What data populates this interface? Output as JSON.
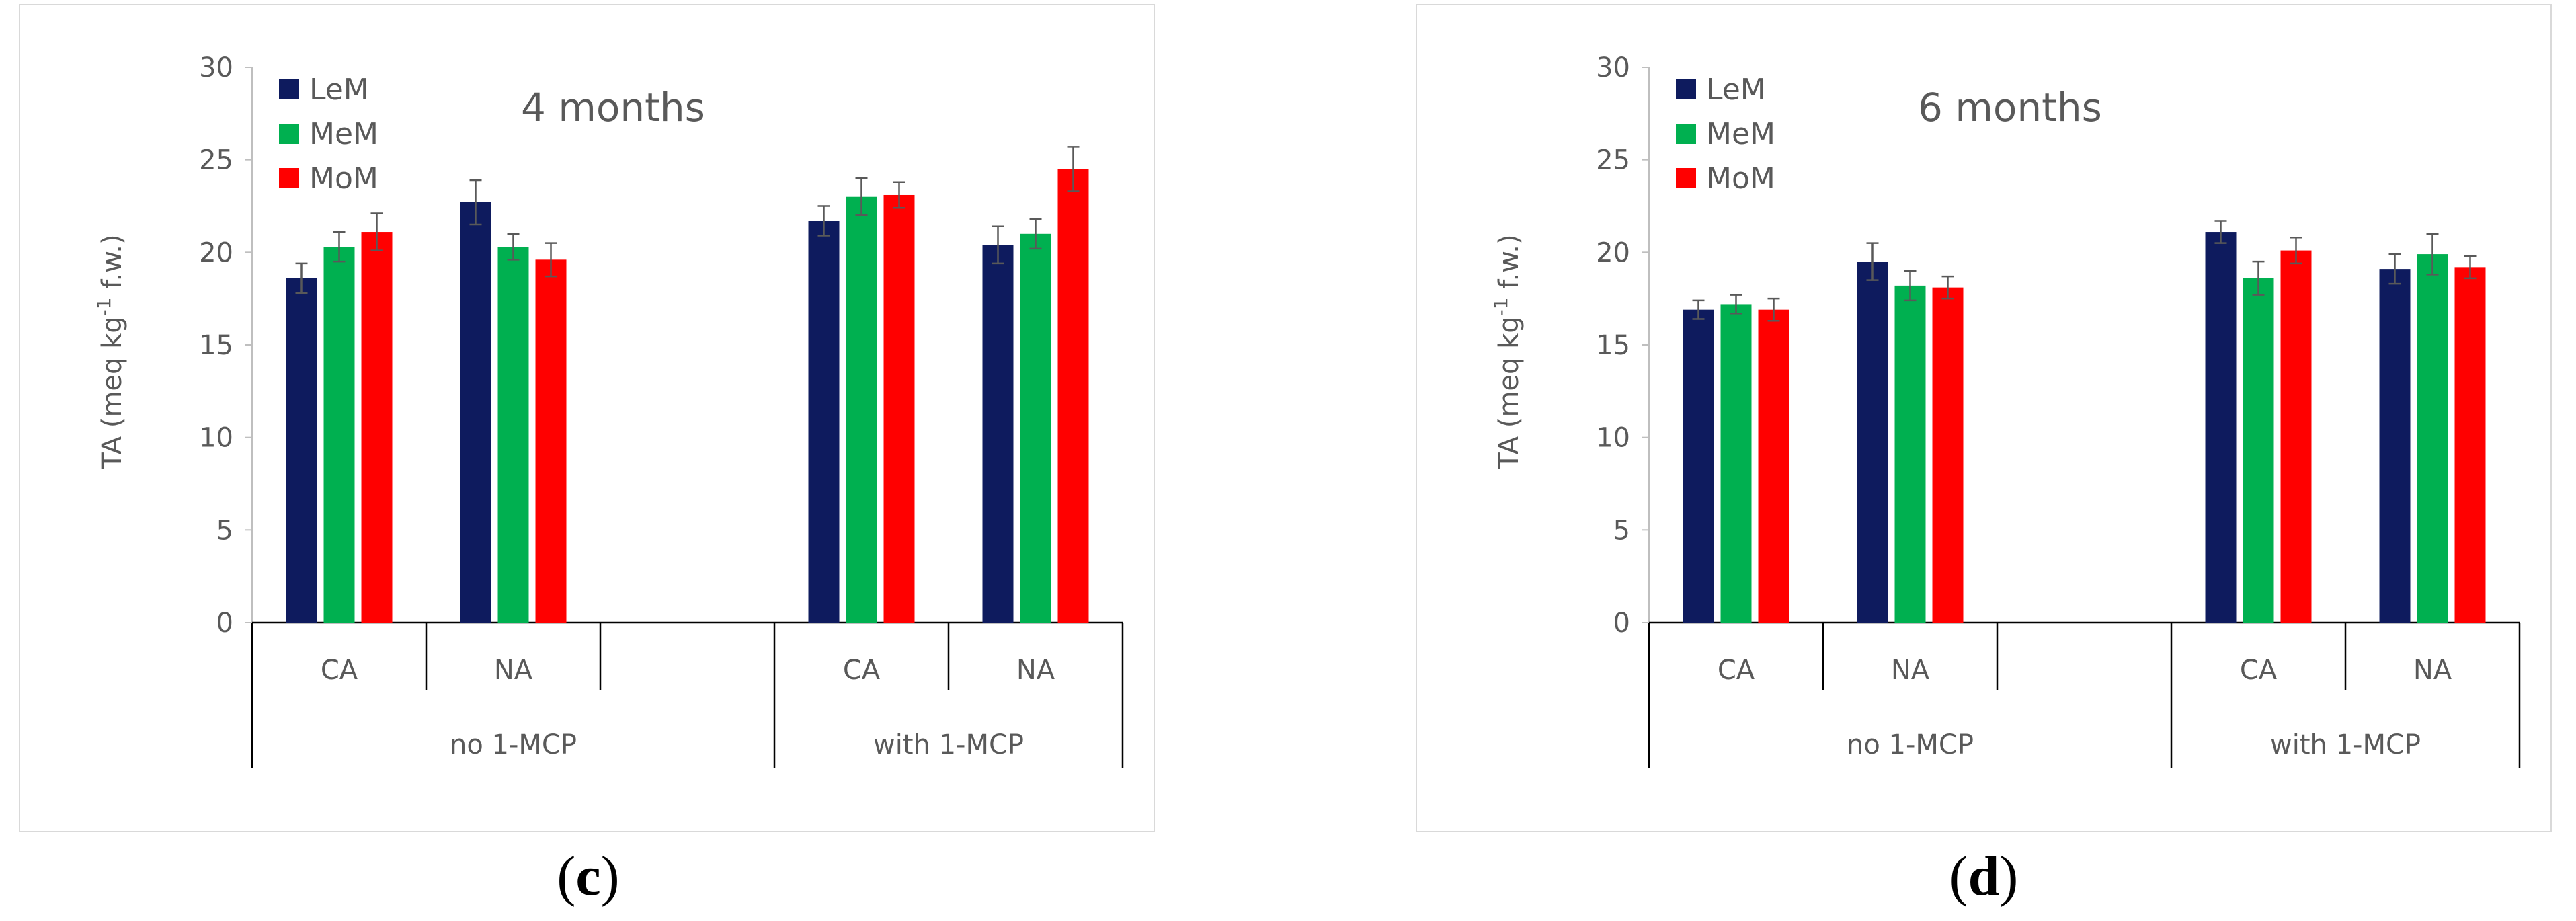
{
  "chart_data": [
    {
      "type": "bar",
      "panel_label": "c",
      "title": "4 months",
      "ylabel": "TA (meq kg",
      "ylabel_sup": "-1",
      "ylabel_tail": " f.w.)",
      "ylim": [
        0,
        30
      ],
      "yticks": [
        "0",
        "5",
        "10",
        "15",
        "20",
        "25",
        "30"
      ],
      "category_groups": [
        {
          "label": "no 1-MCP",
          "categories": [
            "CA",
            "NA",
            ""
          ]
        },
        {
          "label": "with 1-MCP",
          "categories": [
            "CA",
            "NA"
          ]
        }
      ],
      "series": [
        {
          "name": "LeM",
          "color": "#0e1b5e",
          "values": [
            18.6,
            22.7,
            null,
            21.7,
            20.4
          ],
          "errors": [
            0.8,
            1.2,
            null,
            0.8,
            1.0
          ]
        },
        {
          "name": "MeM",
          "color": "#00b050",
          "values": [
            20.3,
            20.3,
            null,
            23.0,
            21.0
          ],
          "errors": [
            0.8,
            0.7,
            null,
            1.0,
            0.8
          ]
        },
        {
          "name": "MoM",
          "color": "#ff0000",
          "values": [
            21.1,
            19.6,
            null,
            23.1,
            24.5
          ],
          "errors": [
            1.0,
            0.9,
            null,
            0.7,
            1.2
          ]
        }
      ]
    },
    {
      "type": "bar",
      "panel_label": "d",
      "title": "6 months",
      "ylabel": "TA (meq kg",
      "ylabel_sup": "-1",
      "ylabel_tail": " f.w.)",
      "ylim": [
        0,
        30
      ],
      "yticks": [
        "0",
        "5",
        "10",
        "15",
        "20",
        "25",
        "30"
      ],
      "category_groups": [
        {
          "label": "no 1-MCP",
          "categories": [
            "CA",
            "NA",
            ""
          ]
        },
        {
          "label": "with 1-MCP",
          "categories": [
            "CA",
            "NA"
          ]
        }
      ],
      "series": [
        {
          "name": "LeM",
          "color": "#0e1b5e",
          "values": [
            16.9,
            19.5,
            null,
            21.1,
            19.1
          ],
          "errors": [
            0.5,
            1.0,
            null,
            0.6,
            0.8
          ]
        },
        {
          "name": "MeM",
          "color": "#00b050",
          "values": [
            17.2,
            18.2,
            null,
            18.6,
            19.9
          ],
          "errors": [
            0.5,
            0.8,
            null,
            0.9,
            1.1
          ]
        },
        {
          "name": "MoM",
          "color": "#ff0000",
          "values": [
            16.9,
            18.1,
            null,
            20.1,
            19.2
          ],
          "errors": [
            0.6,
            0.6,
            null,
            0.7,
            0.6
          ]
        }
      ]
    }
  ],
  "captions": {
    "open": "(",
    "c": "c",
    "d": "d",
    "close": ")"
  }
}
